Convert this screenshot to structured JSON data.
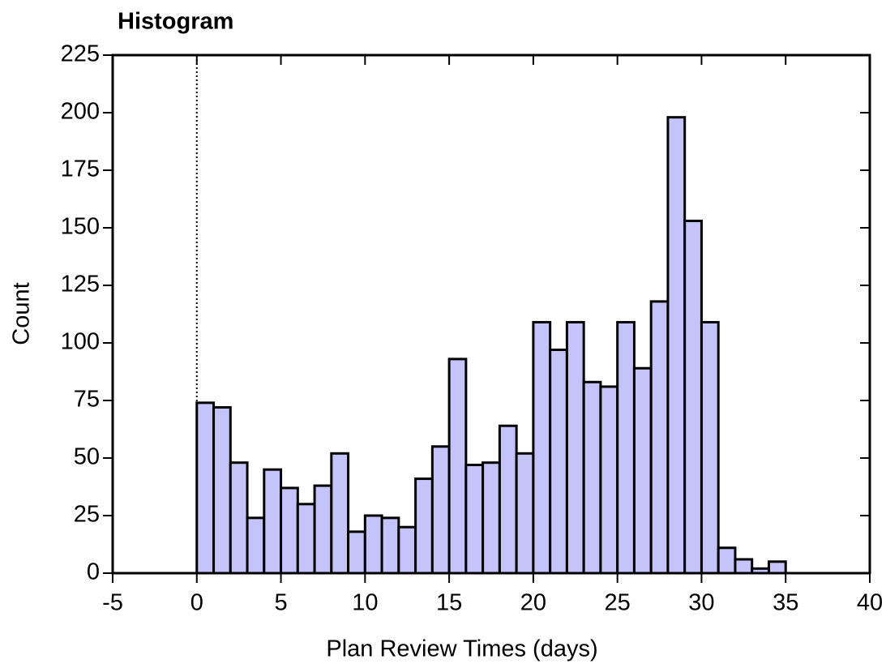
{
  "chart_data": {
    "type": "histogram",
    "title": "Histogram",
    "x_label": "Plan Review Times (days)",
    "y_label": "Count",
    "bins": [
      0,
      1,
      2,
      3,
      4,
      5,
      6,
      7,
      8,
      9,
      10,
      11,
      12,
      13,
      14,
      15,
      16,
      17,
      18,
      19,
      20,
      21,
      22,
      23,
      24,
      25,
      26,
      27,
      28,
      29,
      30,
      31,
      32,
      33,
      34,
      35
    ],
    "values": [
      74,
      72,
      48,
      24,
      45,
      37,
      30,
      38,
      52,
      18,
      25,
      24,
      20,
      41,
      55,
      93,
      47,
      48,
      64,
      52,
      109,
      97,
      109,
      83,
      81,
      109,
      89,
      118,
      198,
      153,
      109,
      11,
      6,
      2,
      5
    ],
    "color": "#c4c4fa",
    "xlim": [
      -5,
      40
    ],
    "xticks": [
      -5,
      0,
      5,
      10,
      15,
      20,
      25,
      30,
      35,
      40
    ],
    "ylim": [
      0,
      225
    ],
    "yticks": [
      0,
      25,
      50,
      75,
      100,
      125,
      150,
      175,
      200,
      225
    ]
  }
}
